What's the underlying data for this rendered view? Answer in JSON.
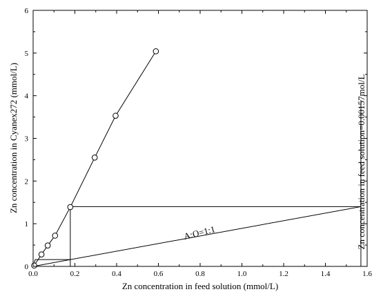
{
  "chart_data": {
    "type": "scatter",
    "title": "",
    "xlabel": "Zn concentration in feed solution (mmol/L)",
    "ylabel": "Zn concentration in Cyanex272 (mmol/L)",
    "xlim": [
      0,
      1.6
    ],
    "ylim": [
      0,
      6
    ],
    "xticks": [
      0,
      0.2,
      0.4,
      0.6,
      0.8,
      1.0,
      1.2,
      1.4,
      1.6
    ],
    "xtick_labels": [
      "0.0",
      "0.2",
      "0.4",
      "0.6",
      "0.8",
      "1.0",
      "1.2",
      "1.4",
      "1.6"
    ],
    "yticks": [
      0,
      1,
      2,
      3,
      4,
      5,
      6
    ],
    "ytick_labels": [
      "0",
      "1",
      "2",
      "3",
      "4",
      "5",
      "6"
    ],
    "grid": false,
    "series": [
      {
        "marker": "open-circle",
        "line": true,
        "x": [
          0.005,
          0.04,
          0.07,
          0.105,
          0.178,
          0.295,
          0.395,
          0.588
        ],
        "y": [
          0.02,
          0.28,
          0.49,
          0.72,
          1.39,
          2.55,
          3.53,
          5.04
        ]
      }
    ],
    "operating_line": {
      "x": [
        0.0,
        1.57
      ],
      "y": [
        0.0,
        1.4
      ]
    },
    "feed_line": {
      "x": 1.57,
      "y": [
        0.0,
        3.9
      ]
    },
    "steps": [
      {
        "x": [
          0.0,
          0.01,
          0.178,
          0.178
        ],
        "y": [
          0.0,
          0.16,
          0.16,
          0.0
        ]
      },
      {
        "x": [
          1.57,
          0.178,
          0.178
        ],
        "y": [
          1.4,
          1.4,
          0.16
        ]
      }
    ],
    "annotations": [
      {
        "text": "A:O=1:1",
        "x": 0.8,
        "y": 0.72
      },
      {
        "text": "Zn concentration in feed solution=0.00157mol/L",
        "x": 1.6,
        "y": 2.45,
        "rotation": -90
      }
    ]
  }
}
